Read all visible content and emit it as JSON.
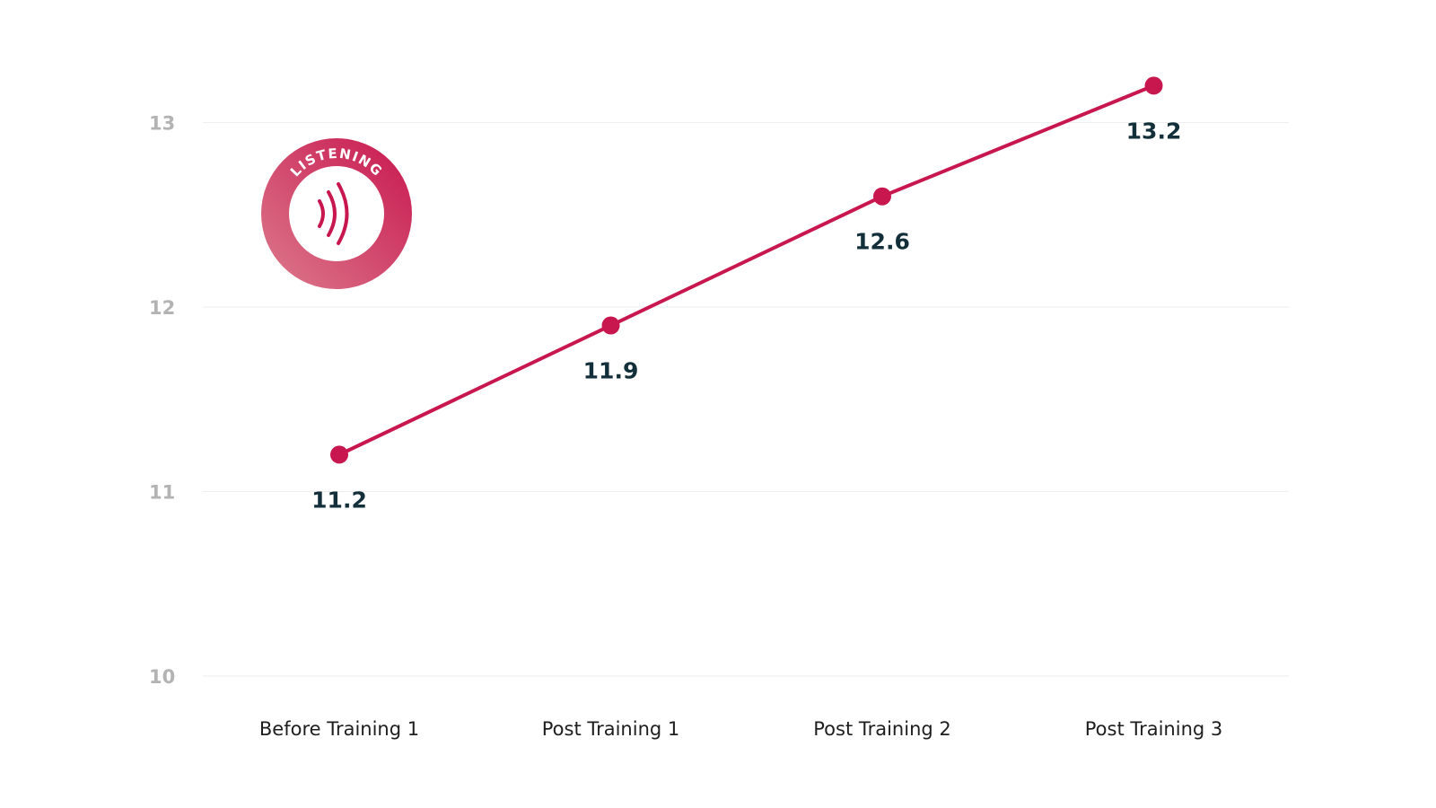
{
  "badge": {
    "label": "LISTENING",
    "icon": "sound-waves-icon"
  },
  "colors": {
    "line": "#c8174f",
    "badge_start": "#d86a80",
    "badge_end": "#c8174f",
    "label": "#13303a",
    "tick": "#b3b3b3"
  },
  "chart_data": {
    "type": "line",
    "title": "",
    "xlabel": "",
    "ylabel": "",
    "categories": [
      "Before Training 1",
      "Post Training 1",
      "Post Training 2",
      "Post Training 3"
    ],
    "series": [
      {
        "values": [
          11.2,
          11.9,
          12.6,
          13.2
        ]
      }
    ],
    "data_labels": [
      "11.2",
      "11.9",
      "12.6",
      "13.2"
    ],
    "yticks": [
      10,
      11,
      12,
      13
    ],
    "ylim": [
      10,
      13.3
    ],
    "grid": true,
    "legend": "none"
  }
}
